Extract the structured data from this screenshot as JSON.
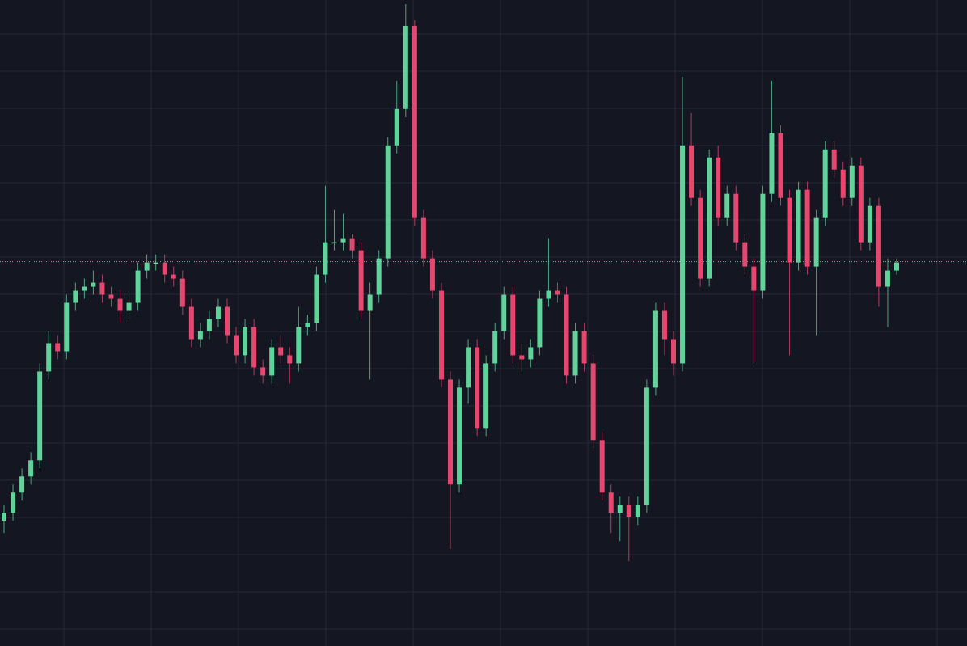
{
  "chart_data": {
    "type": "candlestick",
    "open": [
      155,
      165,
      190,
      210,
      230,
      340,
      375,
      365,
      425,
      440,
      445,
      450,
      435,
      430,
      415,
      425,
      465,
      475,
      475,
      460,
      455,
      420,
      380,
      390,
      405,
      420,
      385,
      360,
      395,
      345,
      335,
      370,
      360,
      350,
      395,
      400,
      460,
      500,
      500,
      505,
      490,
      415,
      435,
      480,
      620,
      665,
      768,
      530,
      480,
      440,
      330,
      200,
      320,
      370,
      270,
      350,
      390,
      435,
      360,
      355,
      370,
      430,
      440,
      435,
      335,
      390,
      350,
      255,
      190,
      165,
      175,
      160,
      175,
      320,
      415,
      380,
      350,
      620,
      555,
      455,
      605,
      530,
      560,
      500,
      470,
      440,
      560,
      635,
      555,
      475,
      565,
      470,
      530,
      615,
      590,
      555,
      595,
      500,
      545,
      445,
      465
    ],
    "high": [
      175,
      200,
      220,
      240,
      350,
      390,
      385,
      435,
      450,
      455,
      465,
      460,
      445,
      440,
      435,
      475,
      485,
      485,
      485,
      470,
      465,
      430,
      400,
      415,
      430,
      430,
      395,
      405,
      405,
      355,
      380,
      385,
      370,
      420,
      410,
      470,
      570,
      540,
      535,
      510,
      500,
      450,
      490,
      630,
      700,
      795,
      775,
      540,
      490,
      450,
      340,
      330,
      380,
      380,
      360,
      400,
      445,
      445,
      375,
      380,
      440,
      505,
      450,
      445,
      400,
      400,
      360,
      265,
      200,
      185,
      185,
      185,
      330,
      425,
      425,
      390,
      705,
      660,
      565,
      615,
      620,
      570,
      570,
      510,
      480,
      570,
      700,
      645,
      565,
      575,
      575,
      540,
      625,
      625,
      600,
      605,
      605,
      555,
      555,
      480,
      480
    ],
    "low": [
      140,
      155,
      180,
      200,
      220,
      330,
      355,
      355,
      415,
      430,
      435,
      425,
      420,
      400,
      405,
      415,
      455,
      465,
      450,
      445,
      410,
      370,
      370,
      380,
      395,
      375,
      350,
      350,
      335,
      325,
      325,
      350,
      325,
      340,
      385,
      390,
      450,
      490,
      490,
      480,
      405,
      330,
      425,
      470,
      610,
      655,
      520,
      470,
      430,
      320,
      120,
      190,
      300,
      260,
      260,
      340,
      380,
      350,
      340,
      345,
      360,
      420,
      425,
      325,
      325,
      340,
      245,
      180,
      140,
      130,
      105,
      150,
      165,
      310,
      360,
      335,
      340,
      545,
      445,
      445,
      520,
      520,
      490,
      460,
      350,
      430,
      550,
      545,
      360,
      465,
      460,
      385,
      520,
      580,
      545,
      545,
      490,
      490,
      420,
      395,
      460
    ],
    "close": [
      165,
      190,
      210,
      230,
      340,
      375,
      365,
      425,
      440,
      445,
      450,
      435,
      430,
      415,
      425,
      465,
      475,
      475,
      460,
      455,
      420,
      380,
      390,
      405,
      420,
      385,
      360,
      395,
      345,
      335,
      370,
      360,
      350,
      395,
      400,
      460,
      500,
      500,
      505,
      490,
      415,
      435,
      480,
      620,
      665,
      768,
      530,
      480,
      440,
      330,
      200,
      320,
      370,
      270,
      350,
      390,
      435,
      360,
      355,
      370,
      430,
      440,
      435,
      335,
      390,
      350,
      255,
      190,
      165,
      175,
      160,
      175,
      320,
      415,
      380,
      350,
      620,
      555,
      455,
      605,
      530,
      560,
      500,
      470,
      440,
      560,
      635,
      555,
      475,
      565,
      470,
      530,
      615,
      590,
      555,
      595,
      500,
      545,
      445,
      465,
      475
    ],
    "up_color": "#5fd39a",
    "down_color": "#e5476f",
    "ylim": [
      0,
      800
    ],
    "grid": true,
    "price_line": 476,
    "price_line_color": "#4fc38a"
  }
}
